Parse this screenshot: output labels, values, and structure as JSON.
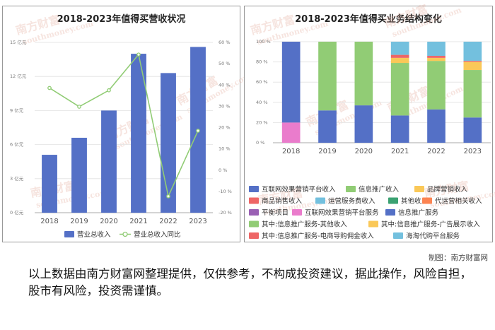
{
  "left_chart": {
    "title": "2018-2023年值得买营收状况"
  },
  "right_chart": {
    "title": "2018-2023年值得买业务结构变化"
  },
  "credit": "制图：南方财富网",
  "disclaimer": "以上数据由南方财富网整理提供，仅供参考，不构成投资建议，据此操作，风险自担，股市有风险，投资需谨慎。",
  "watermark": {
    "cn": "南方财富",
    "en": "southmoney.com"
  },
  "chart_data": [
    {
      "type": "bar",
      "title": "2018-2023年值得买营收状况",
      "categories": [
        "2018",
        "2019",
        "2020",
        "2021",
        "2022",
        "2023"
      ],
      "y_left_ticks": [
        "0 亿元",
        "3 亿元",
        "6 亿元",
        "9 亿元",
        "12 亿元",
        "15 亿元"
      ],
      "y_right_ticks": [
        "-20 %",
        "-10 %",
        "0 %",
        "10 %",
        "20 %",
        "30 %",
        "40 %",
        "50 %",
        "60 %"
      ],
      "ylim_left": [
        0,
        15
      ],
      "ylim_right": [
        -20,
        60
      ],
      "series": [
        {
          "name": "营业总收入",
          "kind": "bar",
          "color": "#5470c6",
          "values": [
            5.1,
            6.6,
            9.0,
            14.0,
            12.3,
            14.6
          ]
        },
        {
          "name": "营业总收入同比",
          "kind": "line",
          "color": "#91cc75",
          "values": [
            38.6,
            29.8,
            37.5,
            54.3,
            -12.3,
            18.5
          ]
        }
      ],
      "legend": "bottom"
    },
    {
      "type": "bar",
      "stacked": true,
      "title": "2018-2023年值得买业务结构变化",
      "categories": [
        "2018",
        "2019",
        "2020",
        "2021",
        "2022",
        "2023"
      ],
      "y_ticks": [
        "0 %",
        "20 %",
        "40 %",
        "60 %",
        "80 %",
        "100 %"
      ],
      "ylim": [
        0,
        100
      ],
      "series": [
        {
          "name": "互联网效果营销平台收入",
          "color": "#5470c6",
          "values": [
            0,
            32,
            37,
            27,
            33,
            25
          ]
        },
        {
          "name": "信息推广收入",
          "color": "#91cc75",
          "values": [
            0,
            68,
            63,
            52,
            48,
            47
          ]
        },
        {
          "name": "品牌营销收入",
          "color": "#fac858",
          "values": [
            0,
            0,
            0,
            5,
            3,
            8
          ]
        },
        {
          "name": "商品销售收入",
          "color": "#ee6666",
          "values": [
            0,
            0,
            0,
            3,
            2,
            1
          ]
        },
        {
          "name": "运营服务费收入",
          "color": "#73c0de",
          "values": [
            0,
            0,
            0,
            13,
            14,
            19
          ]
        },
        {
          "name": "其他收入",
          "color": "#3ba272",
          "values": [
            0,
            0,
            0,
            0,
            0,
            0
          ]
        },
        {
          "name": "代运营相关收入",
          "color": "#fc8452",
          "values": [
            0,
            0,
            0,
            0,
            0,
            0
          ]
        },
        {
          "name": "平衡项目",
          "color": "#9a60b4",
          "values": [
            0,
            0,
            0,
            0,
            0,
            0
          ]
        },
        {
          "name": "互联网效果营销平台服务",
          "color": "#ea7ccc",
          "values": [
            20,
            0,
            0,
            0,
            0,
            0
          ]
        },
        {
          "name": "信息推广服务",
          "color": "#5470c6",
          "values": [
            80,
            0,
            0,
            0,
            0,
            0
          ]
        },
        {
          "name": "其中:信息推广服务-其他收入",
          "color": "#91cc75",
          "values": [
            0,
            0,
            0,
            0,
            0,
            0
          ]
        },
        {
          "name": "其中:信息推广服务-广告展示收入",
          "color": "#fac858",
          "values": [
            0,
            0,
            0,
            0,
            0,
            0
          ]
        },
        {
          "name": "其中:信息推广服务-电商导购佣金收入",
          "color": "#ee6666",
          "values": [
            0,
            0,
            0,
            0,
            0,
            0
          ]
        },
        {
          "name": "海淘代购平台服务",
          "color": "#73c0de",
          "values": [
            0,
            0,
            0,
            0,
            0,
            0
          ]
        }
      ],
      "legend": "bottom"
    }
  ]
}
